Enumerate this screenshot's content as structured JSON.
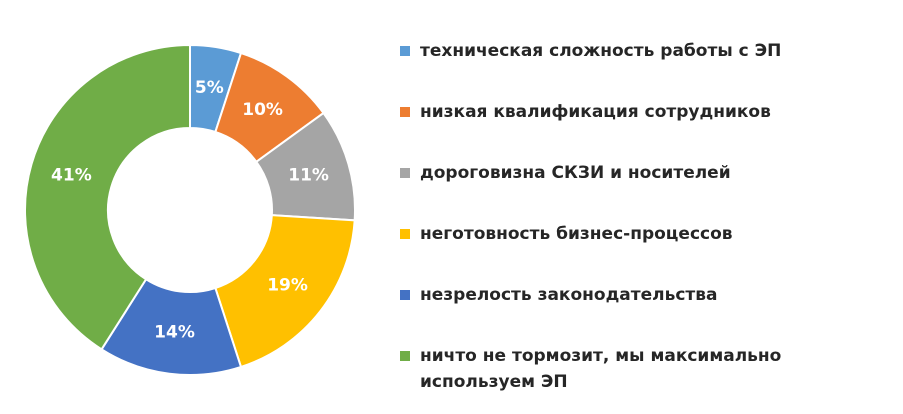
{
  "chart_data": {
    "type": "donut",
    "categories": [
      "техническая сложность работы с ЭП",
      "низкая квалификация сотрудников",
      "дороговизна СКЗИ и носителей",
      "неготовность бизнес-процессов",
      "незрелость законодательства",
      "ничто не тормозит, мы максимально используем ЭП"
    ],
    "values": [
      5,
      10,
      11,
      19,
      14,
      41
    ],
    "value_labels": [
      "5%",
      "10%",
      "11%",
      "19%",
      "14%",
      "41%"
    ],
    "colors": [
      "#5b9bd5",
      "#ed7d31",
      "#a5a5a5",
      "#ffc000",
      "#4472c4",
      "#70ad47"
    ],
    "legend": "right"
  }
}
